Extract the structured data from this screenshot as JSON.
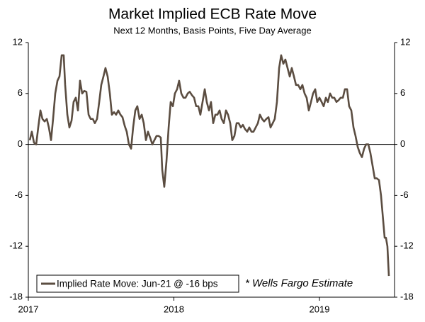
{
  "chart_data": {
    "type": "line",
    "title": "Market Implied ECB Rate Move",
    "subtitle": "Next 12 Months, Basis Points, Five Day Average",
    "annotation": "* Wells Fargo Estimate",
    "x": [
      2017.01,
      2017.024,
      2017.039,
      2017.054,
      2017.068,
      2017.083,
      2017.097,
      2017.112,
      2017.127,
      2017.141,
      2017.156,
      2017.17,
      2017.185,
      2017.2,
      2017.214,
      2017.229,
      2017.243,
      2017.253,
      2017.268,
      2017.282,
      2017.297,
      2017.311,
      2017.326,
      2017.341,
      2017.355,
      2017.37,
      2017.384,
      2017.399,
      2017.414,
      2017.428,
      2017.443,
      2017.457,
      2017.472,
      2017.487,
      2017.501,
      2017.516,
      2017.53,
      2017.545,
      2017.56,
      2017.574,
      2017.589,
      2017.603,
      2017.618,
      2017.633,
      2017.647,
      2017.662,
      2017.676,
      2017.691,
      2017.706,
      2017.72,
      2017.735,
      2017.749,
      2017.764,
      2017.779,
      2017.793,
      2017.808,
      2017.822,
      2017.837,
      2017.852,
      2017.866,
      2017.881,
      2017.895,
      2017.91,
      2017.92,
      2017.934,
      2017.949,
      2017.964,
      2017.978,
      2017.993,
      2018.007,
      2018.022,
      2018.036,
      2018.051,
      2018.066,
      2018.08,
      2018.095,
      2018.109,
      2018.124,
      2018.139,
      2018.153,
      2018.168,
      2018.182,
      2018.197,
      2018.212,
      2018.226,
      2018.241,
      2018.255,
      2018.27,
      2018.285,
      2018.299,
      2018.314,
      2018.328,
      2018.343,
      2018.358,
      2018.372,
      2018.387,
      2018.401,
      2018.416,
      2018.431,
      2018.445,
      2018.46,
      2018.474,
      2018.489,
      2018.504,
      2018.518,
      2018.533,
      2018.547,
      2018.562,
      2018.577,
      2018.591,
      2018.606,
      2018.62,
      2018.635,
      2018.65,
      2018.664,
      2018.679,
      2018.693,
      2018.708,
      2018.723,
      2018.737,
      2018.752,
      2018.766,
      2018.781,
      2018.796,
      2018.81,
      2018.825,
      2018.839,
      2018.854,
      2018.869,
      2018.883,
      2018.898,
      2018.912,
      2018.927,
      2018.942,
      2018.956,
      2018.971,
      2018.985,
      2019.0,
      2019.015,
      2019.029,
      2019.044,
      2019.058,
      2019.073,
      2019.088,
      2019.102,
      2019.117,
      2019.131,
      2019.146,
      2019.161,
      2019.175,
      2019.19,
      2019.204,
      2019.219,
      2019.234,
      2019.248,
      2019.263,
      2019.277,
      2019.292,
      2019.307,
      2019.321,
      2019.336,
      2019.35,
      2019.365,
      2019.38,
      2019.394,
      2019.409,
      2019.423,
      2019.438,
      2019.448,
      2019.457,
      2019.467,
      2019.477
    ],
    "series": [
      {
        "name": "Implied Rate Move: Jun-21 @ -16 bps",
        "color": "#5b4d41",
        "values": [
          0.5,
          1.5,
          0.2,
          0,
          2,
          4,
          3,
          2.7,
          3,
          2,
          0.5,
          3,
          6,
          7.5,
          8,
          10.5,
          10.5,
          7,
          3.5,
          2,
          2.8,
          5,
          5.5,
          4,
          7.5,
          6,
          6.3,
          6.2,
          3.5,
          3,
          3,
          2.5,
          3,
          5,
          7,
          8,
          9,
          8,
          6,
          3.5,
          3.8,
          3.5,
          4,
          3.5,
          3.2,
          2.2,
          1.5,
          0,
          -0.5,
          2,
          4,
          4.5,
          3,
          3.5,
          2.5,
          0.5,
          1.5,
          0.8,
          0,
          0.5,
          1,
          1,
          0.8,
          -3,
          -5,
          -2,
          2,
          5,
          4.5,
          6,
          6.5,
          7.5,
          6,
          5.5,
          5.5,
          6,
          6.2,
          5.8,
          5.5,
          4.5,
          4.5,
          3.5,
          5,
          6.5,
          5,
          4,
          5,
          2.5,
          3.5,
          3.5,
          4,
          3,
          2.5,
          4,
          3.5,
          2.5,
          0.5,
          1,
          2.5,
          2.5,
          2,
          2.3,
          1.8,
          1.5,
          2,
          1.5,
          1.5,
          2,
          2.5,
          3.5,
          3,
          2.7,
          3,
          3.2,
          2,
          2.5,
          3,
          5,
          9,
          10.5,
          9.5,
          10,
          9,
          8,
          9,
          8,
          7,
          7,
          6.5,
          7,
          6,
          5.5,
          4,
          5,
          6,
          6.5,
          5,
          5.5,
          5,
          4.5,
          5.5,
          5,
          6,
          5.5,
          5.5,
          5,
          5.2,
          5.5,
          5.5,
          6.5,
          6.5,
          4.5,
          4,
          2,
          1,
          -0.3,
          -1,
          -1.5,
          -0.5,
          0,
          0,
          -1,
          -2.5,
          -4,
          -4,
          -4.2,
          -6,
          -9,
          -11,
          -11,
          -12,
          -15.5
        ]
      }
    ],
    "xlim": [
      2017,
      2019.516
    ],
    "xticks": [
      2017,
      2018,
      2019
    ],
    "ylim": [
      -18,
      12
    ],
    "yticks": [
      -18,
      -12,
      -6,
      0,
      6,
      12
    ],
    "y2lim": [
      -18,
      12
    ],
    "y2ticks": [
      -18,
      -12,
      -6,
      0,
      6,
      12
    ],
    "grid": false
  }
}
